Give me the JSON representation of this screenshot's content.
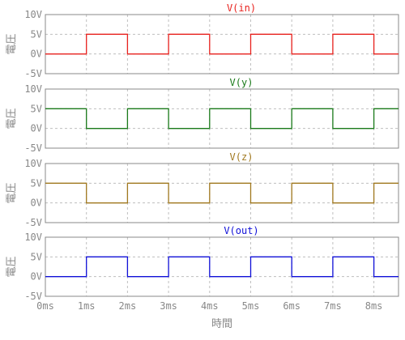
{
  "chart_data": {
    "type": "line",
    "xlabel": "時間",
    "x_ticks": [
      "0ms",
      "1ms",
      "2ms",
      "3ms",
      "4ms",
      "5ms",
      "6ms",
      "7ms",
      "8ms"
    ],
    "xlim": [
      0,
      8.6
    ],
    "grid": true,
    "panels": [
      {
        "title": "V(in)",
        "color": "#e8211d",
        "ylabel": "電圧",
        "y_ticks": [
          "10V",
          "5V",
          "0V",
          "-5V"
        ],
        "ylim": [
          -5,
          10
        ],
        "x": [
          0,
          1,
          1,
          2,
          2,
          3,
          3,
          4,
          4,
          5,
          5,
          6,
          6,
          7,
          7,
          8,
          8,
          8.6
        ],
        "y": [
          0,
          0,
          5,
          5,
          0,
          0,
          5,
          5,
          0,
          0,
          5,
          5,
          0,
          0,
          5,
          5,
          0,
          0
        ]
      },
      {
        "title": "V(y)",
        "color": "#1a7a1a",
        "ylabel": "電圧",
        "y_ticks": [
          "10V",
          "5V",
          "0V",
          "-5V"
        ],
        "ylim": [
          -5,
          10
        ],
        "x": [
          0,
          1,
          1,
          2,
          2,
          3,
          3,
          4,
          4,
          5,
          5,
          6,
          6,
          7,
          7,
          8,
          8,
          8.6
        ],
        "y": [
          5,
          5,
          0,
          0,
          5,
          5,
          0,
          0,
          5,
          5,
          0,
          0,
          5,
          5,
          0,
          0,
          5,
          5
        ]
      },
      {
        "title": "V(z)",
        "color": "#a0781e",
        "ylabel": "電圧",
        "y_ticks": [
          "10V",
          "5V",
          "0V",
          "-5V"
        ],
        "ylim": [
          -5,
          10
        ],
        "x": [
          0,
          1,
          1,
          2,
          2,
          3,
          3,
          4,
          4,
          5,
          5,
          6,
          6,
          7,
          7,
          8,
          8,
          8.6
        ],
        "y": [
          5,
          5,
          0,
          0,
          5,
          5,
          0,
          0,
          5,
          5,
          0,
          0,
          5,
          5,
          0,
          0,
          5,
          5
        ]
      },
      {
        "title": "V(out)",
        "color": "#1010d8",
        "ylabel": "電圧",
        "y_ticks": [
          "10V",
          "5V",
          "0V",
          "-5V"
        ],
        "ylim": [
          -5,
          10
        ],
        "x": [
          0,
          1,
          1,
          2,
          2,
          3,
          3,
          4,
          4,
          5,
          5,
          6,
          6,
          7,
          7,
          8,
          8,
          8.6
        ],
        "y": [
          0,
          0,
          5,
          5,
          0,
          0,
          5,
          5,
          0,
          0,
          5,
          5,
          0,
          0,
          5,
          5,
          0,
          0
        ]
      }
    ]
  }
}
